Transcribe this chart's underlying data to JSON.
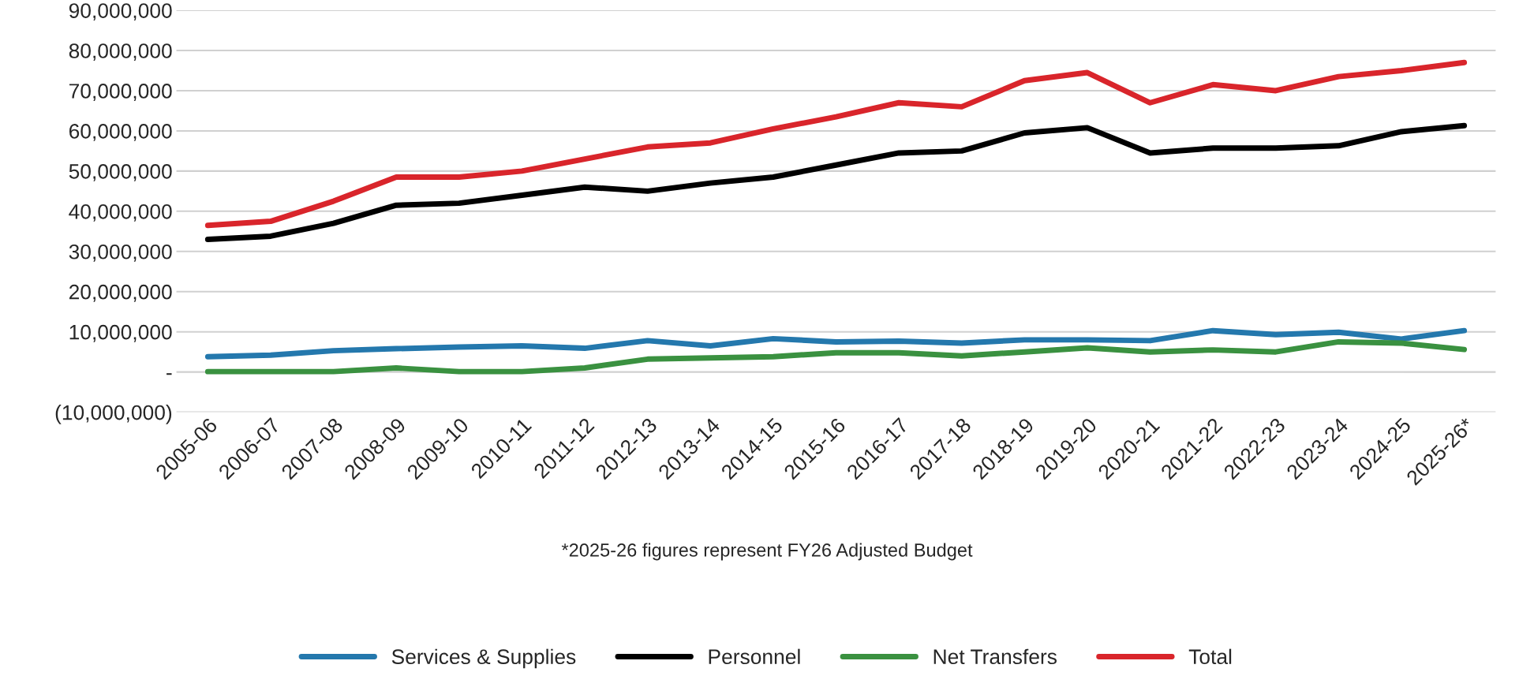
{
  "chart_data": {
    "type": "line",
    "xlabel": "*2025-26 figures represent FY26 Adjusted Budget",
    "categories": [
      "2005-06",
      "2006-07",
      "2007-08",
      "2008-09",
      "2009-10",
      "2010-11",
      "2011-12",
      "2012-13",
      "2013-14",
      "2014-15",
      "2015-16",
      "2016-17",
      "2017-18",
      "2018-19",
      "2019-20",
      "2020-21",
      "2021-22",
      "2022-23",
      "2023-24",
      "2024-25",
      "2025-26*"
    ],
    "series": [
      {
        "name": "Services & Supplies",
        "color": "#2478ad",
        "values": [
          3800000,
          4200000,
          5300000,
          5800000,
          6200000,
          6500000,
          5900000,
          7800000,
          6500000,
          8300000,
          7500000,
          7700000,
          7200000,
          8000000,
          8000000,
          7800000,
          10300000,
          9300000,
          9900000,
          8200000,
          10300000
        ]
      },
      {
        "name": "Personnel",
        "color": "#000000",
        "values": [
          33000000,
          33800000,
          37000000,
          41500000,
          42000000,
          44000000,
          46000000,
          45000000,
          47000000,
          48500000,
          51500000,
          54500000,
          55000000,
          59500000,
          60800000,
          54500000,
          55700000,
          55700000,
          56300000,
          59800000,
          61300000
        ]
      },
      {
        "name": "Net Transfers",
        "color": "#3a9140",
        "values": [
          100000,
          100000,
          100000,
          1000000,
          100000,
          100000,
          1000000,
          3200000,
          3500000,
          3800000,
          4800000,
          4800000,
          4000000,
          5000000,
          6000000,
          5000000,
          5500000,
          5000000,
          7500000,
          7200000,
          5600000
        ]
      },
      {
        "name": "Total",
        "color": "#d9252b",
        "values": [
          36500000,
          37500000,
          42500000,
          48500000,
          48500000,
          50000000,
          53000000,
          56000000,
          57000000,
          60500000,
          63500000,
          67000000,
          66000000,
          72500000,
          74500000,
          67000000,
          71500000,
          70000000,
          73500000,
          75000000,
          77000000
        ]
      }
    ],
    "ylim": [
      -10000000,
      90000000
    ],
    "yticks": [
      {
        "value": -10000000,
        "label": "(10,000,000)"
      },
      {
        "value": 0,
        "label": "-"
      },
      {
        "value": 10000000,
        "label": "10,000,000"
      },
      {
        "value": 20000000,
        "label": "20,000,000"
      },
      {
        "value": 30000000,
        "label": "30,000,000"
      },
      {
        "value": 40000000,
        "label": "40,000,000"
      },
      {
        "value": 50000000,
        "label": "50,000,000"
      },
      {
        "value": 60000000,
        "label": "60,000,000"
      },
      {
        "value": 70000000,
        "label": "70,000,000"
      },
      {
        "value": 80000000,
        "label": "80,000,000"
      },
      {
        "value": 90000000,
        "label": "90,000,000"
      }
    ],
    "grid": "y",
    "legend": "bottom",
    "line_style": "solid",
    "marker": "none"
  }
}
